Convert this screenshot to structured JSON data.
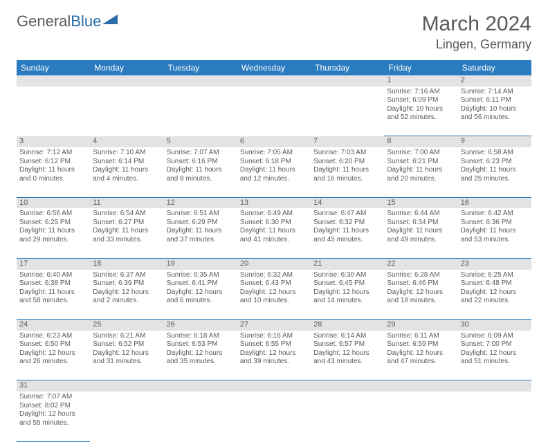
{
  "brand": {
    "part1": "General",
    "part2": "Blue"
  },
  "title": "March 2024",
  "location": "Lingen, Germany",
  "day_headers": [
    "Sunday",
    "Monday",
    "Tuesday",
    "Wednesday",
    "Thursday",
    "Friday",
    "Saturday"
  ],
  "colors": {
    "header_bg": "#2a7bbf",
    "header_text": "#ffffff",
    "daynum_bg": "#e3e3e3",
    "text": "#5a5a5a",
    "rule": "#2a7bbf"
  },
  "weeks": [
    [
      null,
      null,
      null,
      null,
      null,
      {
        "n": "1",
        "sunrise": "Sunrise: 7:16 AM",
        "sunset": "Sunset: 6:09 PM",
        "daylight": "Daylight: 10 hours and 52 minutes."
      },
      {
        "n": "2",
        "sunrise": "Sunrise: 7:14 AM",
        "sunset": "Sunset: 6:11 PM",
        "daylight": "Daylight: 10 hours and 56 minutes."
      }
    ],
    [
      {
        "n": "3",
        "sunrise": "Sunrise: 7:12 AM",
        "sunset": "Sunset: 6:12 PM",
        "daylight": "Daylight: 11 hours and 0 minutes."
      },
      {
        "n": "4",
        "sunrise": "Sunrise: 7:10 AM",
        "sunset": "Sunset: 6:14 PM",
        "daylight": "Daylight: 11 hours and 4 minutes."
      },
      {
        "n": "5",
        "sunrise": "Sunrise: 7:07 AM",
        "sunset": "Sunset: 6:16 PM",
        "daylight": "Daylight: 11 hours and 8 minutes."
      },
      {
        "n": "6",
        "sunrise": "Sunrise: 7:05 AM",
        "sunset": "Sunset: 6:18 PM",
        "daylight": "Daylight: 11 hours and 12 minutes."
      },
      {
        "n": "7",
        "sunrise": "Sunrise: 7:03 AM",
        "sunset": "Sunset: 6:20 PM",
        "daylight": "Daylight: 11 hours and 16 minutes."
      },
      {
        "n": "8",
        "sunrise": "Sunrise: 7:00 AM",
        "sunset": "Sunset: 6:21 PM",
        "daylight": "Daylight: 11 hours and 20 minutes."
      },
      {
        "n": "9",
        "sunrise": "Sunrise: 6:58 AM",
        "sunset": "Sunset: 6:23 PM",
        "daylight": "Daylight: 11 hours and 25 minutes."
      }
    ],
    [
      {
        "n": "10",
        "sunrise": "Sunrise: 6:56 AM",
        "sunset": "Sunset: 6:25 PM",
        "daylight": "Daylight: 11 hours and 29 minutes."
      },
      {
        "n": "11",
        "sunrise": "Sunrise: 6:54 AM",
        "sunset": "Sunset: 6:27 PM",
        "daylight": "Daylight: 11 hours and 33 minutes."
      },
      {
        "n": "12",
        "sunrise": "Sunrise: 6:51 AM",
        "sunset": "Sunset: 6:29 PM",
        "daylight": "Daylight: 11 hours and 37 minutes."
      },
      {
        "n": "13",
        "sunrise": "Sunrise: 6:49 AM",
        "sunset": "Sunset: 6:30 PM",
        "daylight": "Daylight: 11 hours and 41 minutes."
      },
      {
        "n": "14",
        "sunrise": "Sunrise: 6:47 AM",
        "sunset": "Sunset: 6:32 PM",
        "daylight": "Daylight: 11 hours and 45 minutes."
      },
      {
        "n": "15",
        "sunrise": "Sunrise: 6:44 AM",
        "sunset": "Sunset: 6:34 PM",
        "daylight": "Daylight: 11 hours and 49 minutes."
      },
      {
        "n": "16",
        "sunrise": "Sunrise: 6:42 AM",
        "sunset": "Sunset: 6:36 PM",
        "daylight": "Daylight: 11 hours and 53 minutes."
      }
    ],
    [
      {
        "n": "17",
        "sunrise": "Sunrise: 6:40 AM",
        "sunset": "Sunset: 6:38 PM",
        "daylight": "Daylight: 11 hours and 58 minutes."
      },
      {
        "n": "18",
        "sunrise": "Sunrise: 6:37 AM",
        "sunset": "Sunset: 6:39 PM",
        "daylight": "Daylight: 12 hours and 2 minutes."
      },
      {
        "n": "19",
        "sunrise": "Sunrise: 6:35 AM",
        "sunset": "Sunset: 6:41 PM",
        "daylight": "Daylight: 12 hours and 6 minutes."
      },
      {
        "n": "20",
        "sunrise": "Sunrise: 6:32 AM",
        "sunset": "Sunset: 6:43 PM",
        "daylight": "Daylight: 12 hours and 10 minutes."
      },
      {
        "n": "21",
        "sunrise": "Sunrise: 6:30 AM",
        "sunset": "Sunset: 6:45 PM",
        "daylight": "Daylight: 12 hours and 14 minutes."
      },
      {
        "n": "22",
        "sunrise": "Sunrise: 6:28 AM",
        "sunset": "Sunset: 6:46 PM",
        "daylight": "Daylight: 12 hours and 18 minutes."
      },
      {
        "n": "23",
        "sunrise": "Sunrise: 6:25 AM",
        "sunset": "Sunset: 6:48 PM",
        "daylight": "Daylight: 12 hours and 22 minutes."
      }
    ],
    [
      {
        "n": "24",
        "sunrise": "Sunrise: 6:23 AM",
        "sunset": "Sunset: 6:50 PM",
        "daylight": "Daylight: 12 hours and 26 minutes."
      },
      {
        "n": "25",
        "sunrise": "Sunrise: 6:21 AM",
        "sunset": "Sunset: 6:52 PM",
        "daylight": "Daylight: 12 hours and 31 minutes."
      },
      {
        "n": "26",
        "sunrise": "Sunrise: 6:18 AM",
        "sunset": "Sunset: 6:53 PM",
        "daylight": "Daylight: 12 hours and 35 minutes."
      },
      {
        "n": "27",
        "sunrise": "Sunrise: 6:16 AM",
        "sunset": "Sunset: 6:55 PM",
        "daylight": "Daylight: 12 hours and 39 minutes."
      },
      {
        "n": "28",
        "sunrise": "Sunrise: 6:14 AM",
        "sunset": "Sunset: 6:57 PM",
        "daylight": "Daylight: 12 hours and 43 minutes."
      },
      {
        "n": "29",
        "sunrise": "Sunrise: 6:11 AM",
        "sunset": "Sunset: 6:59 PM",
        "daylight": "Daylight: 12 hours and 47 minutes."
      },
      {
        "n": "30",
        "sunrise": "Sunrise: 6:09 AM",
        "sunset": "Sunset: 7:00 PM",
        "daylight": "Daylight: 12 hours and 51 minutes."
      }
    ],
    [
      {
        "n": "31",
        "sunrise": "Sunrise: 7:07 AM",
        "sunset": "Sunset: 8:02 PM",
        "daylight": "Daylight: 12 hours and 55 minutes."
      },
      null,
      null,
      null,
      null,
      null,
      null
    ]
  ]
}
